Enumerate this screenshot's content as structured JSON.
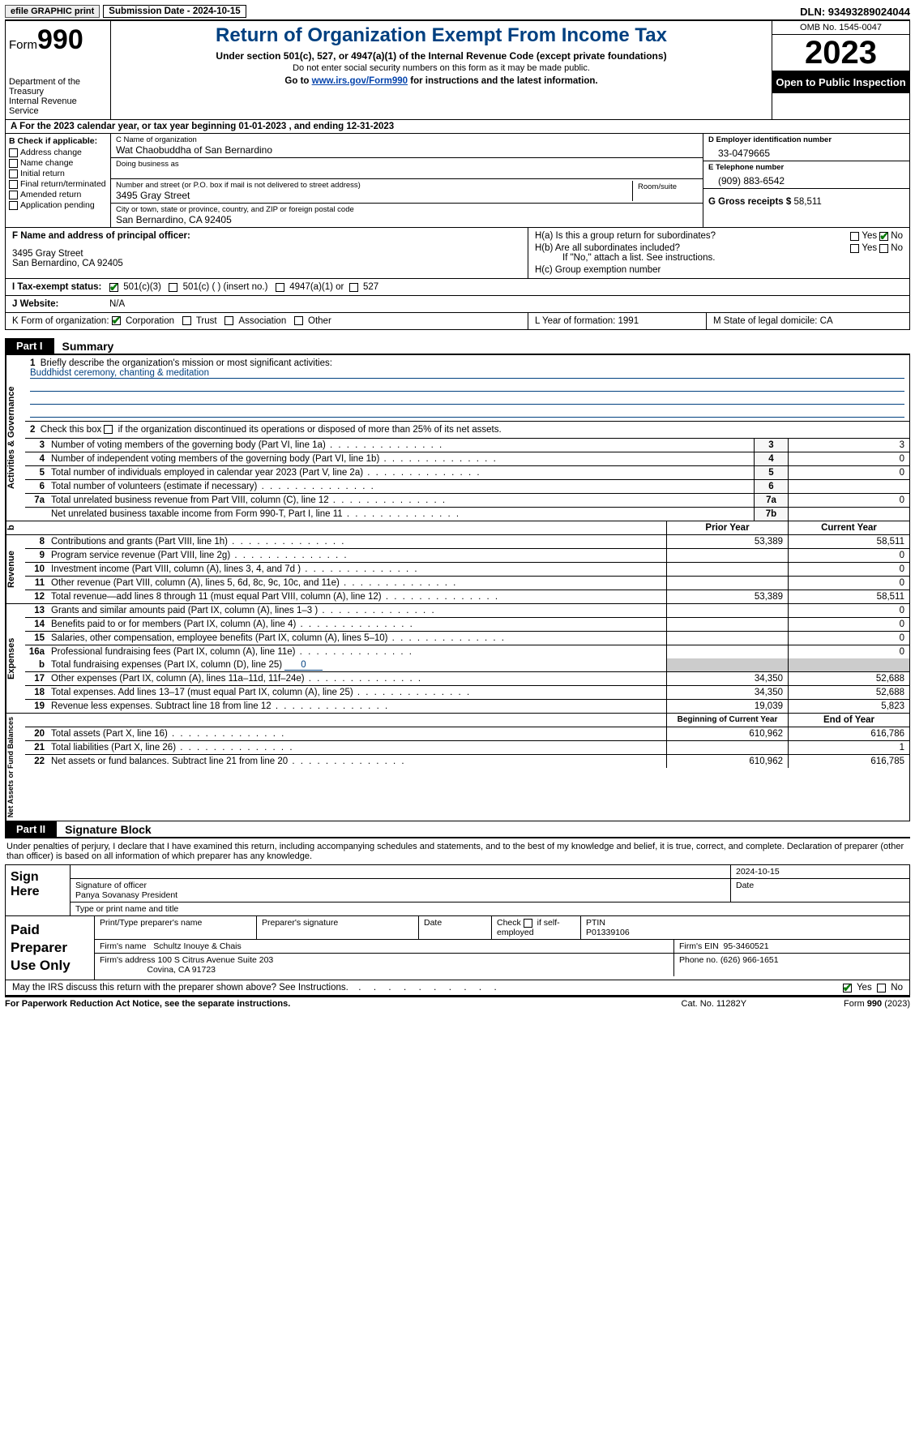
{
  "topbar": {
    "efile": "efile GRAPHIC print",
    "submission": "Submission Date - 2024-10-15",
    "dln": "DLN: 93493289024044"
  },
  "header": {
    "form_word": "Form",
    "form_num": "990",
    "dept": "Department of the Treasury",
    "irs": "Internal Revenue Service",
    "title": "Return of Organization Exempt From Income Tax",
    "sub1": "Under section 501(c), 527, or 4947(a)(1) of the Internal Revenue Code (except private foundations)",
    "sub2": "Do not enter social security numbers on this form as it may be made public.",
    "sub3_pre": "Go to ",
    "sub3_link": "www.irs.gov/Form990",
    "sub3_post": " for instructions and the latest information.",
    "omb": "OMB No. 1545-0047",
    "year": "2023",
    "inspect": "Open to Public Inspection"
  },
  "row_a": "A For the 2023 calendar year, or tax year beginning 01-01-2023   , and ending 12-31-2023",
  "box_b": {
    "head": "B Check if applicable:",
    "opts": [
      "Address change",
      "Name change",
      "Initial return",
      "Final return/terminated",
      "Amended return",
      "Application pending"
    ]
  },
  "box_c": {
    "name_lbl": "C Name of organization",
    "name": "Wat Chaobuddha of San Bernardino",
    "dba_lbl": "Doing business as",
    "dba": "",
    "addr_lbl": "Number and street (or P.O. box if mail is not delivered to street address)",
    "addr": "3495 Gray Street",
    "room_lbl": "Room/suite",
    "city_lbl": "City or town, state or province, country, and ZIP or foreign postal code",
    "city": "San Bernardino, CA  92405"
  },
  "box_d": {
    "lbl": "D Employer identification number",
    "val": "33-0479665"
  },
  "box_e": {
    "lbl": "E Telephone number",
    "val": "(909) 883-6542"
  },
  "box_g": {
    "lbl": "G Gross receipts $",
    "val": "58,511"
  },
  "box_f": {
    "lbl": "F  Name and address of principal officer:",
    "addr1": "3495 Gray Street",
    "addr2": "San Bernardino, CA  92405"
  },
  "box_h": {
    "a": "H(a)  Is this a group return for subordinates?",
    "b": "H(b)  Are all subordinates included?",
    "b2": "If \"No,\" attach a list. See instructions.",
    "c": "H(c)  Group exemption number",
    "yes": "Yes",
    "no": "No"
  },
  "status": {
    "lbl": "I   Tax-exempt status:",
    "o1": "501(c)(3)",
    "o2": "501(c) (  ) (insert no.)",
    "o3": "4947(a)(1) or",
    "o4": "527"
  },
  "website": {
    "lbl": "J   Website:",
    "val": "N/A"
  },
  "korg": {
    "lbl": "K Form of organization:",
    "o1": "Corporation",
    "o2": "Trust",
    "o3": "Association",
    "o4": "Other"
  },
  "box_l": "L Year of formation: 1991",
  "box_m": "M State of legal domicile: CA",
  "part1": {
    "tag": "Part I",
    "title": "Summary"
  },
  "summary": {
    "sec1_label": "Activities & Governance",
    "l1": "Briefly describe the organization's mission or most significant activities:",
    "mission": "Buddhidst ceremony, chanting & meditation",
    "l2": "Check this box       if the organization discontinued its operations or disposed of more than 25% of its net assets.",
    "rows_gov": [
      {
        "n": "3",
        "t": "Number of voting members of the governing body (Part VI, line 1a)",
        "box": "3",
        "v": "3"
      },
      {
        "n": "4",
        "t": "Number of independent voting members of the governing body (Part VI, line 1b)",
        "box": "4",
        "v": "0"
      },
      {
        "n": "5",
        "t": "Total number of individuals employed in calendar year 2023 (Part V, line 2a)",
        "box": "5",
        "v": "0"
      },
      {
        "n": "6",
        "t": "Total number of volunteers (estimate if necessary)",
        "box": "6",
        "v": ""
      },
      {
        "n": "7a",
        "t": "Total unrelated business revenue from Part VIII, column (C), line 12",
        "box": "7a",
        "v": "0"
      },
      {
        "n": "",
        "t": "Net unrelated business taxable income from Form 990-T, Part I, line 11",
        "box": "7b",
        "v": ""
      }
    ],
    "hdr_b": "b",
    "col_prior": "Prior Year",
    "col_current": "Current Year",
    "sec2_label": "Revenue",
    "rows_rev": [
      {
        "n": "8",
        "t": "Contributions and grants (Part VIII, line 1h)",
        "p": "53,389",
        "c": "58,511"
      },
      {
        "n": "9",
        "t": "Program service revenue (Part VIII, line 2g)",
        "p": "",
        "c": "0"
      },
      {
        "n": "10",
        "t": "Investment income (Part VIII, column (A), lines 3, 4, and 7d )",
        "p": "",
        "c": "0"
      },
      {
        "n": "11",
        "t": "Other revenue (Part VIII, column (A), lines 5, 6d, 8c, 9c, 10c, and 11e)",
        "p": "",
        "c": "0"
      },
      {
        "n": "12",
        "t": "Total revenue—add lines 8 through 11 (must equal Part VIII, column (A), line 12)",
        "p": "53,389",
        "c": "58,511"
      }
    ],
    "sec3_label": "Expenses",
    "rows_exp": [
      {
        "n": "13",
        "t": "Grants and similar amounts paid (Part IX, column (A), lines 1–3 )",
        "p": "",
        "c": "0"
      },
      {
        "n": "14",
        "t": "Benefits paid to or for members (Part IX, column (A), line 4)",
        "p": "",
        "c": "0"
      },
      {
        "n": "15",
        "t": "Salaries, other compensation, employee benefits (Part IX, column (A), lines 5–10)",
        "p": "",
        "c": "0"
      },
      {
        "n": "16a",
        "t": "Professional fundraising fees (Part IX, column (A), line 11e)",
        "p": "",
        "c": "0"
      }
    ],
    "l16b_pre": "Total fundraising expenses (Part IX, column (D), line 25) ",
    "l16b_val": "0",
    "rows_exp2": [
      {
        "n": "17",
        "t": "Other expenses (Part IX, column (A), lines 11a–11d, 11f–24e)",
        "p": "34,350",
        "c": "52,688"
      },
      {
        "n": "18",
        "t": "Total expenses. Add lines 13–17 (must equal Part IX, column (A), line 25)",
        "p": "34,350",
        "c": "52,688"
      },
      {
        "n": "19",
        "t": "Revenue less expenses. Subtract line 18 from line 12",
        "p": "19,039",
        "c": "5,823"
      }
    ],
    "sec4_label": "Net Assets or Fund Balances",
    "col_begin": "Beginning of Current Year",
    "col_end": "End of Year",
    "rows_net": [
      {
        "n": "20",
        "t": "Total assets (Part X, line 16)",
        "p": "610,962",
        "c": "616,786"
      },
      {
        "n": "21",
        "t": "Total liabilities (Part X, line 26)",
        "p": "",
        "c": "1"
      },
      {
        "n": "22",
        "t": "Net assets or fund balances. Subtract line 21 from line 20",
        "p": "610,962",
        "c": "616,785"
      }
    ]
  },
  "part2": {
    "tag": "Part II",
    "title": "Signature Block"
  },
  "sig_intro": "Under penalties of perjury, I declare that I have examined this return, including accompanying schedules and statements, and to the best of my knowledge and belief, it is true, correct, and complete. Declaration of preparer (other than officer) is based on all information of which preparer has any knowledge.",
  "sign": {
    "here": "Sign Here",
    "sig_lbl": "Signature of officer",
    "date_lbl": "Date",
    "date": "2024-10-15",
    "name": "Panya Sovanasy  President",
    "name_lbl": "Type or print name and title"
  },
  "paid": {
    "title": "Paid Preparer Use Only",
    "h1": "Print/Type preparer's name",
    "h2": "Preparer's signature",
    "h3": "Date",
    "h4_pre": "Check",
    "h4_post": "if self-employed",
    "h5": "PTIN",
    "ptin": "P01339106",
    "firm_lbl": "Firm's name",
    "firm": "Schultz Inouye & Chais",
    "ein_lbl": "Firm's EIN",
    "ein": "95-3460521",
    "addr_lbl": "Firm's address",
    "addr1": "100 S Citrus Avenue Suite 203",
    "addr2": "Covina, CA  91723",
    "phone_lbl": "Phone no.",
    "phone": "(626) 966-1651"
  },
  "discuss": {
    "q": "May the IRS discuss this return with the preparer shown above? See Instructions.",
    "yes": "Yes",
    "no": "No"
  },
  "footer": {
    "l": "For Paperwork Reduction Act Notice, see the separate instructions.",
    "c": "Cat. No. 11282Y",
    "r": "Form 990 (2023)"
  }
}
